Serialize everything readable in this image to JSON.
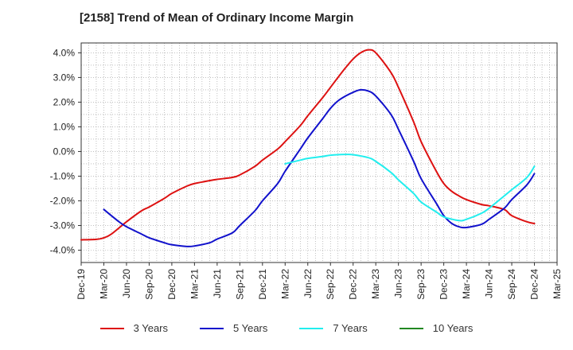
{
  "chart_data": {
    "type": "line",
    "title": "[2158]  Trend of Mean of Ordinary Income Margin",
    "xlabel": "",
    "ylabel": "",
    "categories": [
      "Dec-19",
      "Mar-20",
      "Jun-20",
      "Sep-20",
      "Dec-20",
      "Mar-21",
      "Jun-21",
      "Sep-21",
      "Dec-21",
      "Mar-22",
      "Jun-22",
      "Sep-22",
      "Dec-22",
      "Mar-23",
      "Jun-23",
      "Sep-23",
      "Dec-23",
      "Mar-24",
      "Jun-24",
      "Sep-24",
      "Dec-24",
      "Mar-25"
    ],
    "ylim": [
      -4.5,
      4.4
    ],
    "yticks": [
      "4.0%",
      "3.0%",
      "2.0%",
      "1.0%",
      "0.0%",
      "-1.0%",
      "-2.0%",
      "-3.0%",
      "-4.0%"
    ],
    "ytick_values": [
      4,
      3,
      2,
      1,
      0,
      -1,
      -2,
      -3,
      -4
    ],
    "grid": true,
    "legend_position": "bottom",
    "series": [
      {
        "name": "3 Years",
        "color": "#dd1111",
        "x": [
          0,
          0.67,
          1,
          1.33,
          2,
          2.67,
          3,
          3.67,
          4,
          4.67,
          5,
          5.67,
          6,
          6.67,
          7,
          7.67,
          8,
          8.67,
          9,
          9.67,
          10,
          10.67,
          11,
          11.33,
          11.67,
          12,
          12.33,
          12.67,
          13,
          13.67,
          14,
          14.67,
          15,
          15.67,
          16,
          16.33,
          16.67,
          17,
          17.67,
          18,
          18.67,
          19,
          19.67,
          20
        ],
        "values": [
          -3.58,
          -3.56,
          -3.5,
          -3.35,
          -2.85,
          -2.4,
          -2.25,
          -1.9,
          -1.7,
          -1.4,
          -1.3,
          -1.18,
          -1.13,
          -1.05,
          -0.95,
          -0.6,
          -0.35,
          0.1,
          0.4,
          1.05,
          1.45,
          2.2,
          2.6,
          3.0,
          3.4,
          3.75,
          4.0,
          4.12,
          4.0,
          3.2,
          2.6,
          1.2,
          0.4,
          -0.8,
          -1.3,
          -1.6,
          -1.8,
          -1.95,
          -2.15,
          -2.2,
          -2.35,
          -2.6,
          -2.85,
          -2.92
        ]
      },
      {
        "name": "5 Years",
        "color": "#1111cc",
        "x": [
          1,
          1.67,
          2,
          2.67,
          3,
          3.67,
          4,
          4.67,
          5,
          5.67,
          6,
          6.67,
          7,
          7.67,
          8,
          8.67,
          9,
          9.67,
          10,
          10.67,
          11,
          11.33,
          11.67,
          12,
          12.33,
          12.67,
          13,
          13.67,
          14,
          14.67,
          15,
          15.67,
          16,
          16.33,
          16.67,
          17,
          17.67,
          18,
          18.67,
          19,
          19.67,
          20
        ],
        "values": [
          -2.35,
          -2.85,
          -3.05,
          -3.35,
          -3.5,
          -3.7,
          -3.78,
          -3.85,
          -3.83,
          -3.7,
          -3.55,
          -3.3,
          -3.0,
          -2.4,
          -2.0,
          -1.3,
          -0.8,
          0.1,
          0.55,
          1.35,
          1.75,
          2.05,
          2.25,
          2.4,
          2.5,
          2.45,
          2.25,
          1.5,
          0.9,
          -0.4,
          -1.1,
          -2.1,
          -2.6,
          -2.9,
          -3.05,
          -3.08,
          -2.95,
          -2.75,
          -2.3,
          -1.95,
          -1.35,
          -0.9
        ]
      },
      {
        "name": "7 Years",
        "color": "#22eeee",
        "x": [
          9,
          9.67,
          10,
          10.67,
          11,
          11.67,
          12,
          12.67,
          13,
          13.67,
          14,
          14.67,
          15,
          15.67,
          16,
          16.67,
          17,
          17.67,
          18,
          18.67,
          19,
          19.67,
          20
        ],
        "values": [
          -0.5,
          -0.35,
          -0.28,
          -0.2,
          -0.15,
          -0.12,
          -0.13,
          -0.25,
          -0.4,
          -0.85,
          -1.15,
          -1.7,
          -2.05,
          -2.45,
          -2.65,
          -2.8,
          -2.75,
          -2.5,
          -2.3,
          -1.8,
          -1.55,
          -1.05,
          -0.6
        ]
      },
      {
        "name": "10 Years",
        "color": "#228822",
        "x": [],
        "values": []
      }
    ]
  }
}
